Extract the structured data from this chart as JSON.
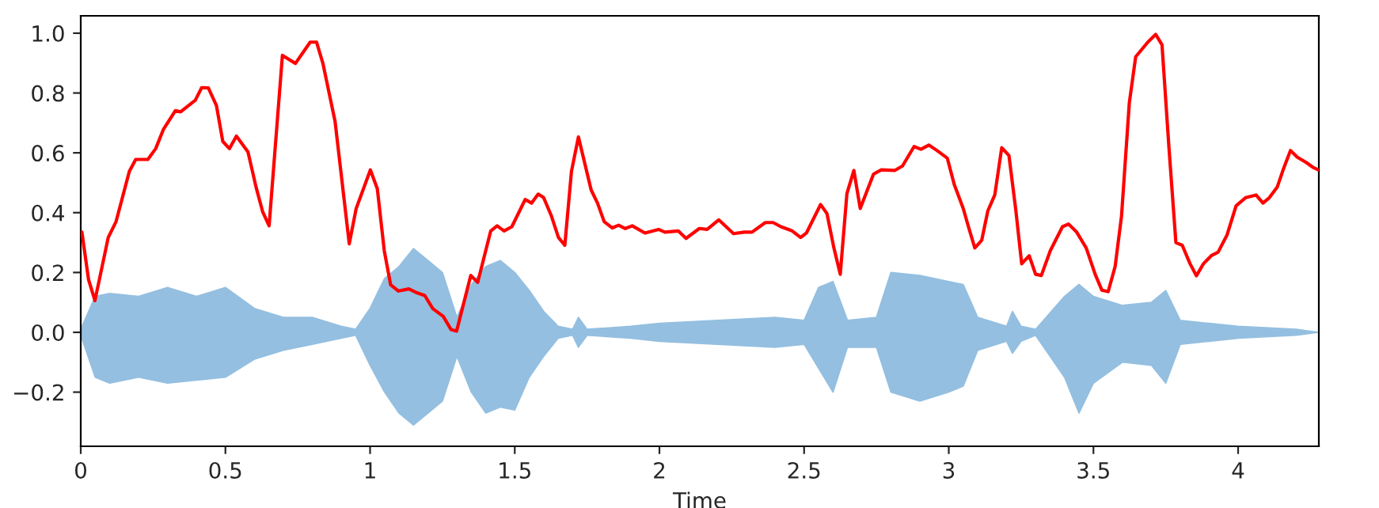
{
  "chart_data": {
    "type": "line",
    "xlabel": "Time",
    "xlim": [
      0,
      4.279
    ],
    "ylim": [
      -0.381,
      1.058
    ],
    "xticks": [
      {
        "value": 0,
        "label": "0"
      },
      {
        "value": 0.5,
        "label": "0.5"
      },
      {
        "value": 1,
        "label": "1"
      },
      {
        "value": 1.5,
        "label": "1.5"
      },
      {
        "value": 2,
        "label": "2"
      },
      {
        "value": 2.5,
        "label": "2.5"
      },
      {
        "value": 3,
        "label": "3"
      },
      {
        "value": 3.5,
        "label": "3.5"
      },
      {
        "value": 4,
        "label": "4"
      }
    ],
    "yticks": [
      {
        "value": -0.2,
        "label": "−0.2"
      },
      {
        "value": 0,
        "label": "0.0"
      },
      {
        "value": 0.2,
        "label": "0.2"
      },
      {
        "value": 0.4,
        "label": "0.4"
      },
      {
        "value": 0.6,
        "label": "0.6"
      },
      {
        "value": 0.8,
        "label": "0.8"
      },
      {
        "value": 1.0,
        "label": "1.0"
      }
    ],
    "grid": false,
    "legend": false,
    "series": [
      {
        "type": "area",
        "color": "#94bfe0",
        "x": [
          0,
          0.05,
          0.1,
          0.2,
          0.3,
          0.4,
          0.5,
          0.6,
          0.7,
          0.8,
          0.9,
          0.95,
          1.0,
          1.05,
          1.1,
          1.15,
          1.2,
          1.25,
          1.3,
          1.35,
          1.4,
          1.45,
          1.5,
          1.55,
          1.6,
          1.65,
          1.7,
          1.72,
          1.75,
          1.9,
          2.0,
          2.2,
          2.4,
          2.5,
          2.55,
          2.6,
          2.65,
          2.75,
          2.8,
          2.9,
          3.0,
          3.05,
          3.1,
          3.2,
          3.22,
          3.25,
          3.3,
          3.4,
          3.45,
          3.5,
          3.6,
          3.7,
          3.75,
          3.8,
          3.9,
          4.0,
          4.2,
          4.279
        ],
        "values": [
          0.01,
          0.12,
          0.13,
          0.12,
          0.15,
          0.12,
          0.15,
          0.08,
          0.05,
          0.05,
          0.02,
          0.01,
          0.08,
          0.18,
          0.22,
          0.28,
          0.24,
          0.2,
          0.05,
          0.16,
          0.22,
          0.24,
          0.2,
          0.14,
          0.07,
          0.02,
          0.01,
          0.05,
          0.01,
          0.02,
          0.03,
          0.04,
          0.05,
          0.04,
          0.15,
          0.17,
          0.04,
          0.05,
          0.2,
          0.19,
          0.17,
          0.16,
          0.05,
          0.02,
          0.07,
          0.02,
          0.01,
          0.12,
          0.16,
          0.12,
          0.09,
          0.1,
          0.14,
          0.04,
          0.03,
          0.02,
          0.01,
          0.0
        ]
      },
      {
        "type": "area",
        "color": "#94bfe0",
        "x": [
          0,
          0.05,
          0.1,
          0.2,
          0.3,
          0.4,
          0.5,
          0.6,
          0.7,
          0.8,
          0.9,
          0.95,
          1.0,
          1.05,
          1.1,
          1.15,
          1.2,
          1.25,
          1.3,
          1.35,
          1.4,
          1.45,
          1.5,
          1.55,
          1.6,
          1.65,
          1.7,
          1.72,
          1.75,
          1.9,
          2.0,
          2.2,
          2.4,
          2.5,
          2.55,
          2.6,
          2.65,
          2.75,
          2.8,
          2.9,
          3.0,
          3.05,
          3.1,
          3.2,
          3.22,
          3.25,
          3.3,
          3.4,
          3.45,
          3.5,
          3.6,
          3.7,
          3.75,
          3.8,
          3.9,
          4.0,
          4.2,
          4.279
        ],
        "values": [
          -0.01,
          -0.15,
          -0.17,
          -0.15,
          -0.17,
          -0.16,
          -0.15,
          -0.09,
          -0.06,
          -0.04,
          -0.02,
          -0.01,
          -0.11,
          -0.2,
          -0.27,
          -0.31,
          -0.27,
          -0.23,
          -0.08,
          -0.2,
          -0.27,
          -0.25,
          -0.26,
          -0.15,
          -0.08,
          -0.02,
          -0.01,
          -0.05,
          -0.01,
          -0.02,
          -0.03,
          -0.04,
          -0.05,
          -0.04,
          -0.12,
          -0.2,
          -0.05,
          -0.05,
          -0.2,
          -0.23,
          -0.2,
          -0.18,
          -0.06,
          -0.03,
          -0.07,
          -0.03,
          -0.01,
          -0.15,
          -0.27,
          -0.17,
          -0.1,
          -0.11,
          -0.17,
          -0.04,
          -0.03,
          -0.02,
          -0.01,
          0.0
        ]
      },
      {
        "color": "#ff0000",
        "x": [
          0.004,
          0.027,
          0.049,
          0.095,
          0.122,
          0.168,
          0.19,
          0.232,
          0.259,
          0.286,
          0.327,
          0.345,
          0.396,
          0.418,
          0.441,
          0.469,
          0.491,
          0.514,
          0.538,
          0.578,
          0.606,
          0.629,
          0.651,
          0.697,
          0.742,
          0.793,
          0.815,
          0.837,
          0.879,
          0.928,
          0.952,
          1.001,
          1.025,
          1.049,
          1.071,
          1.098,
          1.134,
          1.162,
          1.189,
          1.217,
          1.253,
          1.28,
          1.299,
          1.348,
          1.372,
          1.417,
          1.439,
          1.463,
          1.49,
          1.536,
          1.558,
          1.581,
          1.6,
          1.627,
          1.651,
          1.673,
          1.696,
          1.72,
          1.764,
          1.786,
          1.809,
          1.837,
          1.859,
          1.882,
          1.906,
          1.95,
          1.997,
          2.019,
          2.065,
          2.092,
          2.138,
          2.165,
          2.205,
          2.256,
          2.293,
          2.32,
          2.366,
          2.393,
          2.42,
          2.457,
          2.488,
          2.508,
          2.557,
          2.579,
          2.603,
          2.625,
          2.648,
          2.672,
          2.694,
          2.74,
          2.767,
          2.813,
          2.84,
          2.88,
          2.904,
          2.931,
          2.959,
          2.995,
          3.019,
          3.05,
          3.068,
          3.09,
          3.114,
          3.135,
          3.159,
          3.183,
          3.208,
          3.232,
          3.252,
          3.278,
          3.3,
          3.32,
          3.351,
          3.393,
          3.414,
          3.442,
          3.475,
          3.506,
          3.529,
          3.551,
          3.575,
          3.597,
          3.624,
          3.646,
          3.688,
          3.715,
          3.737,
          3.761,
          3.785,
          3.807,
          3.834,
          3.856,
          3.88,
          3.907,
          3.931,
          3.962,
          3.993,
          4.026,
          4.062,
          4.086,
          4.108,
          4.135,
          4.157,
          4.181,
          4.204,
          4.235,
          4.258,
          4.277
        ],
        "values": [
          0.335,
          0.176,
          0.106,
          0.317,
          0.37,
          0.538,
          0.578,
          0.578,
          0.614,
          0.679,
          0.741,
          0.737,
          0.776,
          0.818,
          0.817,
          0.758,
          0.638,
          0.614,
          0.656,
          0.603,
          0.485,
          0.402,
          0.356,
          0.926,
          0.899,
          0.97,
          0.97,
          0.899,
          0.705,
          0.296,
          0.414,
          0.543,
          0.48,
          0.273,
          0.159,
          0.138,
          0.145,
          0.132,
          0.123,
          0.079,
          0.053,
          0.009,
          0.004,
          0.19,
          0.167,
          0.339,
          0.356,
          0.339,
          0.353,
          0.444,
          0.432,
          0.462,
          0.45,
          0.388,
          0.317,
          0.291,
          0.538,
          0.653,
          0.476,
          0.432,
          0.37,
          0.349,
          0.358,
          0.347,
          0.356,
          0.332,
          0.344,
          0.335,
          0.339,
          0.314,
          0.347,
          0.344,
          0.376,
          0.33,
          0.335,
          0.335,
          0.367,
          0.367,
          0.353,
          0.34,
          0.317,
          0.332,
          0.427,
          0.397,
          0.282,
          0.194,
          0.464,
          0.541,
          0.414,
          0.529,
          0.543,
          0.541,
          0.556,
          0.621,
          0.612,
          0.626,
          0.608,
          0.582,
          0.494,
          0.414,
          0.353,
          0.282,
          0.308,
          0.406,
          0.459,
          0.617,
          0.591,
          0.406,
          0.229,
          0.256,
          0.194,
          0.19,
          0.273,
          0.353,
          0.362,
          0.335,
          0.282,
          0.194,
          0.141,
          0.136,
          0.22,
          0.388,
          0.767,
          0.921,
          0.97,
          0.996,
          0.961,
          0.617,
          0.3,
          0.291,
          0.229,
          0.189,
          0.229,
          0.256,
          0.268,
          0.326,
          0.423,
          0.45,
          0.459,
          0.432,
          0.45,
          0.485,
          0.547,
          0.608,
          0.586,
          0.568,
          0.552,
          0.543
        ]
      }
    ]
  }
}
